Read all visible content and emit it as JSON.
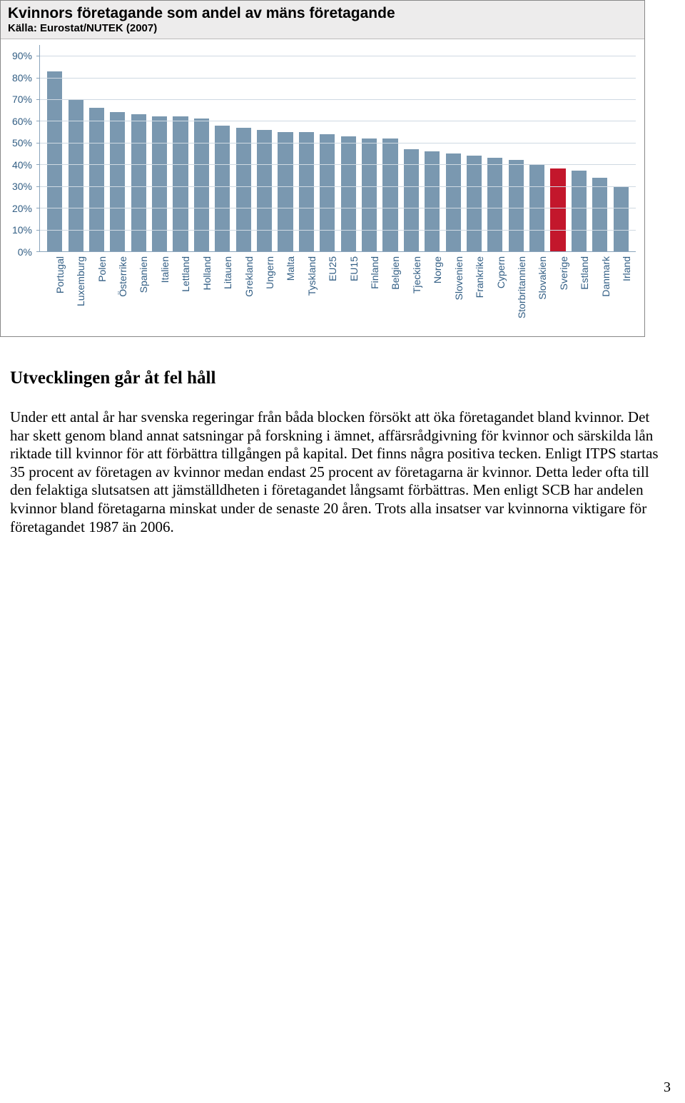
{
  "chart": {
    "type": "bar",
    "title": "Kvinnors företagande som andel av mäns företagande",
    "subtitle": "Källa: Eurostat/NUTEK (2007)",
    "title_fontsize": 21,
    "subtitle_fontsize": 15,
    "header_bg": "#edecec",
    "plot_bg": "#ffffff",
    "grid_color": "#cfd9e2",
    "axis_color": "#8aa4bb",
    "label_color": "#325e84",
    "label_fontsize": 14,
    "ylim": [
      0,
      95
    ],
    "yticks": [
      0,
      10,
      20,
      30,
      40,
      50,
      60,
      70,
      80,
      90
    ],
    "ytick_labels": [
      "0%",
      "10%",
      "20%",
      "30%",
      "40%",
      "50%",
      "60%",
      "70%",
      "80%",
      "90%"
    ],
    "bar_width": 0.72,
    "default_bar_color": "#7a98b0",
    "highlight_bar_color": "#c3172c",
    "categories": [
      "Portugal",
      "Luxemburg",
      "Polen",
      "Österrike",
      "Spanien",
      "Italien",
      "Lettland",
      "Holland",
      "Litauen",
      "Grekland",
      "Ungern",
      "Malta",
      "Tyskland",
      "EU25",
      "EU15",
      "Finland",
      "Belgien",
      "Tjeckien",
      "Norge",
      "Slovenien",
      "Frankrike",
      "Cypern",
      "Storbritannien",
      "Slovakien",
      "Sverige",
      "Estland",
      "Danmark",
      "Irland"
    ],
    "values": [
      83,
      70,
      66,
      64,
      63,
      62,
      62,
      61,
      58,
      57,
      56,
      55,
      55,
      54,
      53,
      52,
      52,
      47,
      46,
      45,
      44,
      43,
      42,
      40,
      38,
      37,
      34,
      30
    ],
    "highlight_index": 24
  },
  "article": {
    "heading": "Utvecklingen går åt fel håll",
    "body": "Under ett antal år har svenska regeringar från båda blocken försökt att öka företagandet bland kvinnor. Det har skett genom bland annat satsningar på forskning i ämnet, affärsrådgivning för kvinnor och särskilda lån riktade till kvinnor för att förbättra tillgången på kapital. Det finns några positiva tecken. Enligt ITPS startas 35 procent av företagen av kvinnor medan endast 25 procent av företagarna är kvinnor. Detta leder ofta till den felaktiga slutsatsen att jämställdheten i företagandet långsamt förbättras. Men enligt SCB har andelen kvinnor bland företagarna minskat under de senaste 20 åren. Trots alla insatser var kvinnorna viktigare för företagandet 1987 än 2006.",
    "heading_fontsize": 25,
    "body_fontsize": 21
  },
  "page_number": "3"
}
